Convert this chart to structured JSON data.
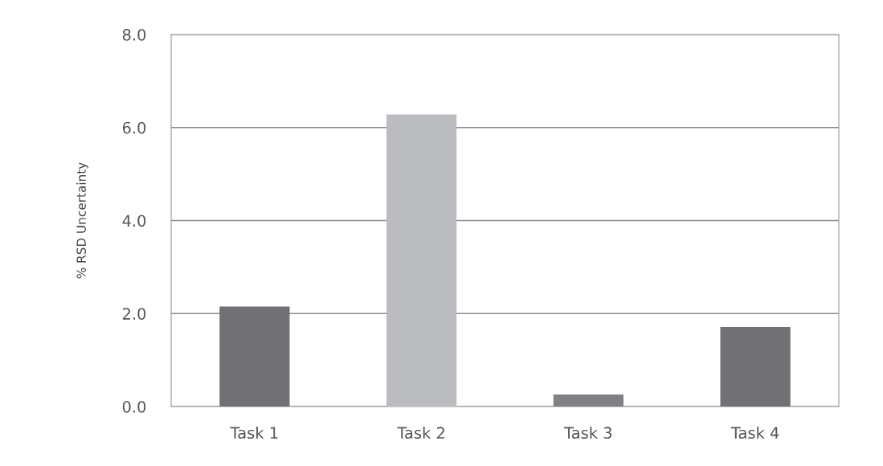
{
  "chart_data": {
    "type": "bar",
    "ylabel": "% RSD Uncertainty",
    "categories": [
      "Task 1",
      "Task 2",
      "Task 3",
      "Task 4"
    ],
    "values": [
      2.15,
      6.28,
      0.26,
      1.71
    ],
    "colors": [
      "#717074",
      "#bbbcc0",
      "#808184",
      "#717074"
    ],
    "ylim": [
      0,
      8
    ],
    "yticks": [
      {
        "value": 0,
        "label": "0.0"
      },
      {
        "value": 2,
        "label": "2.0"
      },
      {
        "value": 4,
        "label": "4.0"
      },
      {
        "value": 6,
        "label": "6.0"
      },
      {
        "value": 8,
        "label": "8.0"
      }
    ],
    "grid": "y",
    "legend": false
  }
}
